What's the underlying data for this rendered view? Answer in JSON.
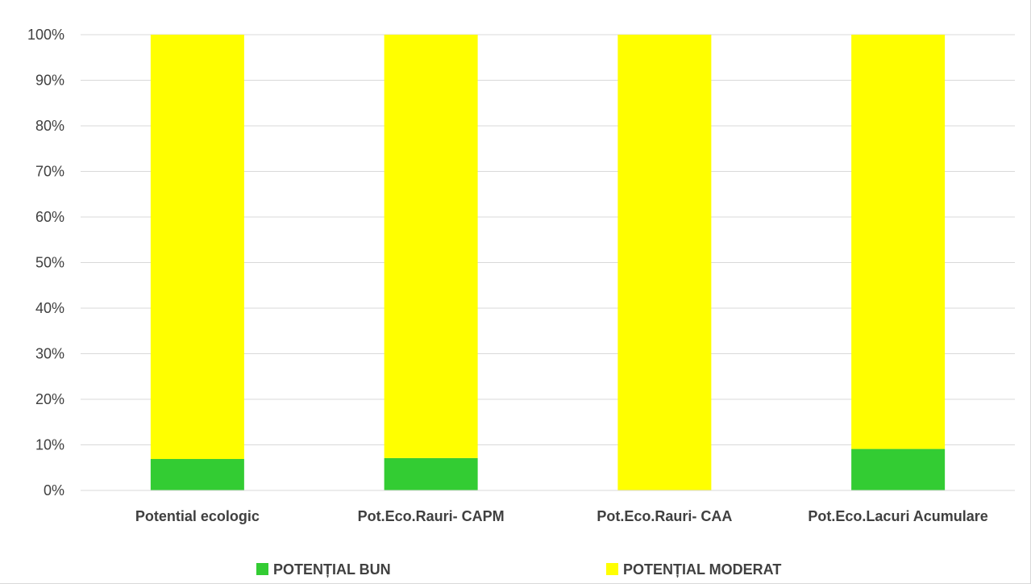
{
  "chart_data": {
    "type": "bar",
    "stacked": true,
    "percent_stacked": true,
    "categories": [
      "Potential ecologic",
      "Pot.Eco.Rauri- CAPM",
      "Pot.Eco.Rauri- CAA",
      "Pot.Eco.Lacuri Acumulare"
    ],
    "series": [
      {
        "name": "POTENȚIAL BUN",
        "color": "#33cc33",
        "values": [
          6.9,
          7.1,
          0,
          9.1
        ]
      },
      {
        "name": "POTENȚIAL MODERAT",
        "color": "#ffff00",
        "values": [
          93.1,
          92.9,
          100,
          90.9
        ]
      }
    ],
    "ylim": [
      0,
      100
    ],
    "yticks": [
      0,
      10,
      20,
      30,
      40,
      50,
      60,
      70,
      80,
      90,
      100
    ],
    "ytick_labels": [
      "0%",
      "10%",
      "20%",
      "30%",
      "40%",
      "50%",
      "60%",
      "70%",
      "80%",
      "90%",
      "100%"
    ],
    "grid": true,
    "legend_position": "bottom",
    "title": "",
    "xlabel": "",
    "ylabel": ""
  }
}
